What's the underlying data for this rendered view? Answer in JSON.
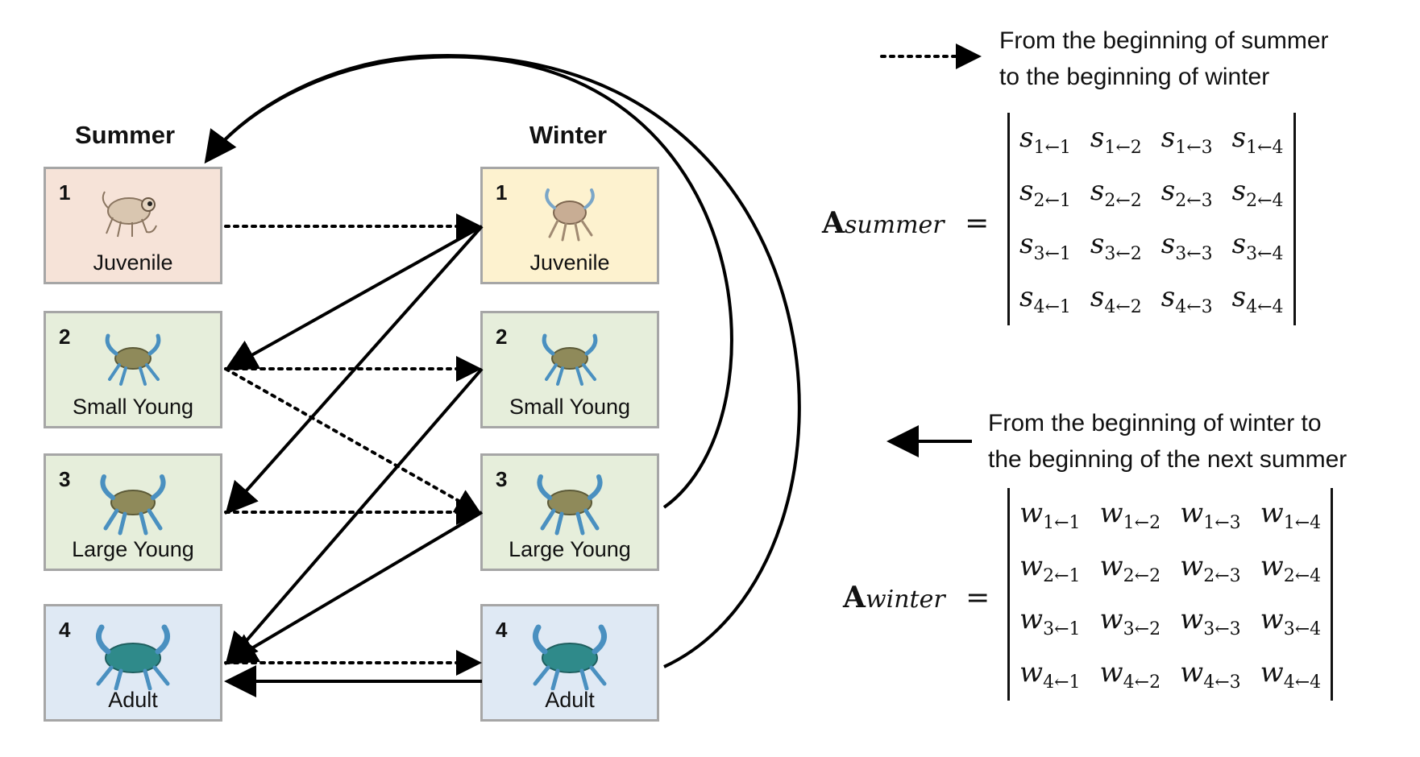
{
  "columns": {
    "summer": "Summer",
    "winter": "Winter"
  },
  "summer_boxes": [
    {
      "num": "1",
      "label": "Juvenile"
    },
    {
      "num": "2",
      "label": "Small Young"
    },
    {
      "num": "3",
      "label": "Large Young"
    },
    {
      "num": "4",
      "label": "Adult"
    }
  ],
  "winter_boxes": [
    {
      "num": "1",
      "label": "Juvenile"
    },
    {
      "num": "2",
      "label": "Small Young"
    },
    {
      "num": "3",
      "label": "Large Young"
    },
    {
      "num": "4",
      "label": "Adult"
    }
  ],
  "legend": {
    "dotted_line1": "From the beginning of summer",
    "dotted_line2": "to the beginning of winter",
    "solid_line1": "From the beginning of winter to",
    "solid_line2": "the beginning of the next summer"
  },
  "matrices": {
    "summer": {
      "bold": "A",
      "sub": "summer",
      "eq": "=",
      "sym": "s"
    },
    "winter": {
      "bold": "A",
      "sub": "winter",
      "eq": "=",
      "sym": "w"
    }
  },
  "matrix_subscripts": [
    [
      "1←1",
      "1←2",
      "1←3",
      "1←4"
    ],
    [
      "2←1",
      "2←2",
      "2←3",
      "2←4"
    ],
    [
      "3←1",
      "3←2",
      "3←3",
      "3←4"
    ],
    [
      "4←1",
      "4←2",
      "4←3",
      "4←4"
    ]
  ],
  "colors": {
    "juvenile_summer": "#f6e3d8",
    "juvenile_winter": "#fdf2cf",
    "young": "#e6eedb",
    "adult": "#dfe9f4",
    "border": "#a6a6a6",
    "crab": "#4a90c0"
  },
  "icons": [
    "shrimp-larva-icon",
    "crab-icon"
  ]
}
